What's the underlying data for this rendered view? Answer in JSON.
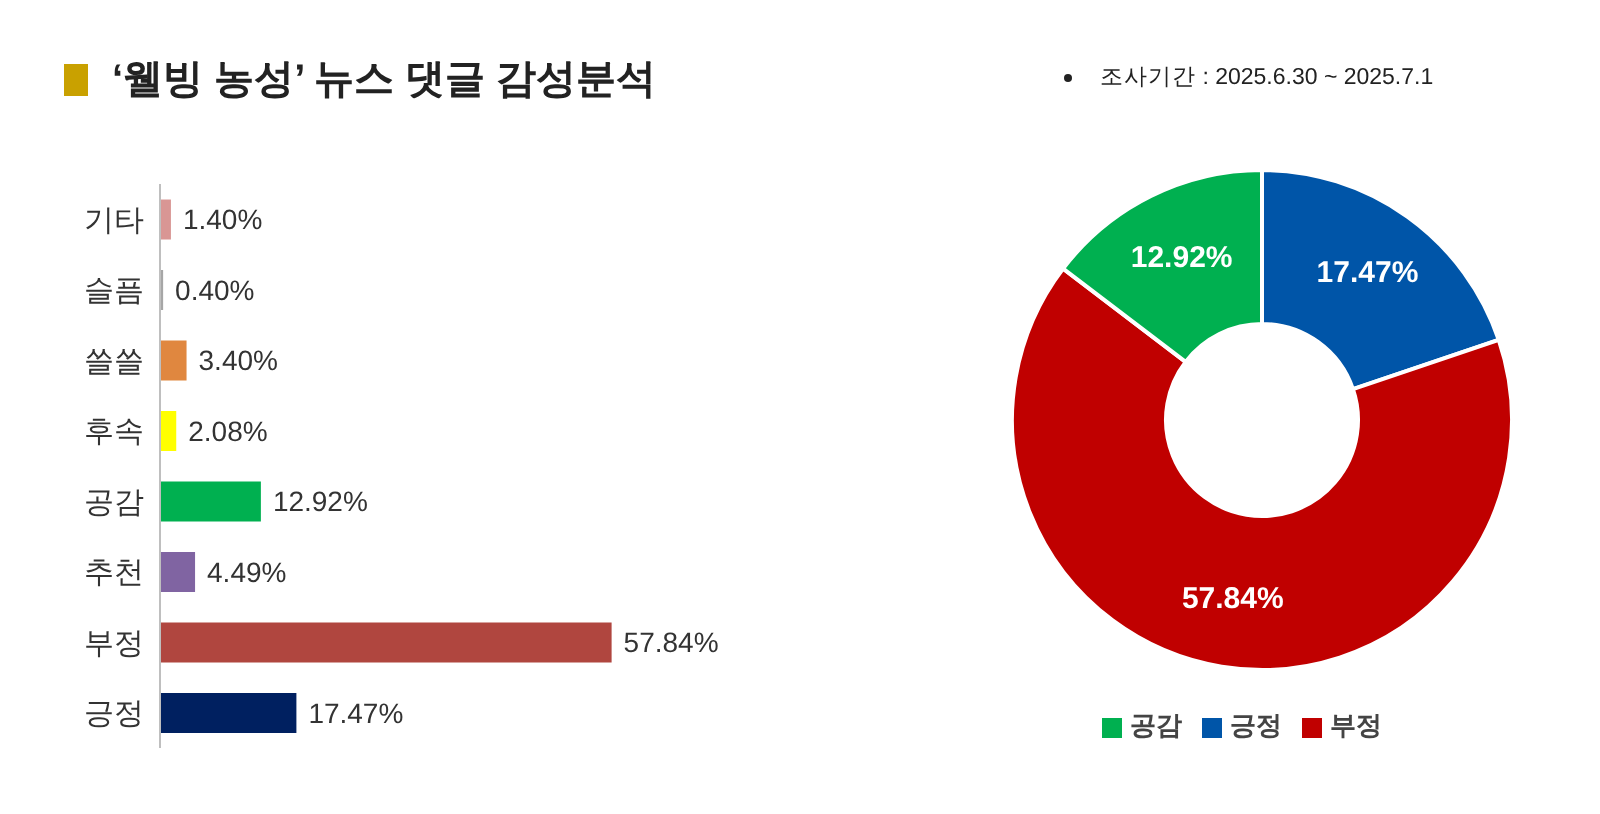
{
  "chart_data": [
    {
      "type": "bar",
      "title": "‘웰빙 농성’ 뉴스 댓글 감성분석",
      "orientation": "horizontal",
      "categories": [
        "기타",
        "슬픔",
        "쓸쓸",
        "후속",
        "공감",
        "추천",
        "부정",
        "긍정"
      ],
      "values": [
        1.4,
        0.4,
        3.4,
        2.08,
        12.92,
        4.49,
        57.84,
        17.47
      ],
      "colors": [
        "#d99694",
        "#a6a6a6",
        "#e0873f",
        "#ffff00",
        "#00b050",
        "#8064a2",
        "#b0463f",
        "#002060"
      ],
      "value_labels": [
        "1.40%",
        "0.40%",
        "3.40%",
        "2.08%",
        "12.92%",
        "4.49%",
        "57.84%",
        "17.47%"
      ]
    },
    {
      "type": "donut",
      "annotations": [
        "조사기간 : 2025.6.30 ~ 2025.7.1"
      ],
      "categories": [
        "긍정",
        "부정",
        "공감"
      ],
      "values": [
        17.47,
        57.84,
        12.92
      ],
      "colors": [
        "#0055a8",
        "#c00000",
        "#00b050"
      ],
      "value_labels": [
        "17.47%",
        "57.84%",
        "12.92%"
      ],
      "legend": "bottom"
    }
  ]
}
